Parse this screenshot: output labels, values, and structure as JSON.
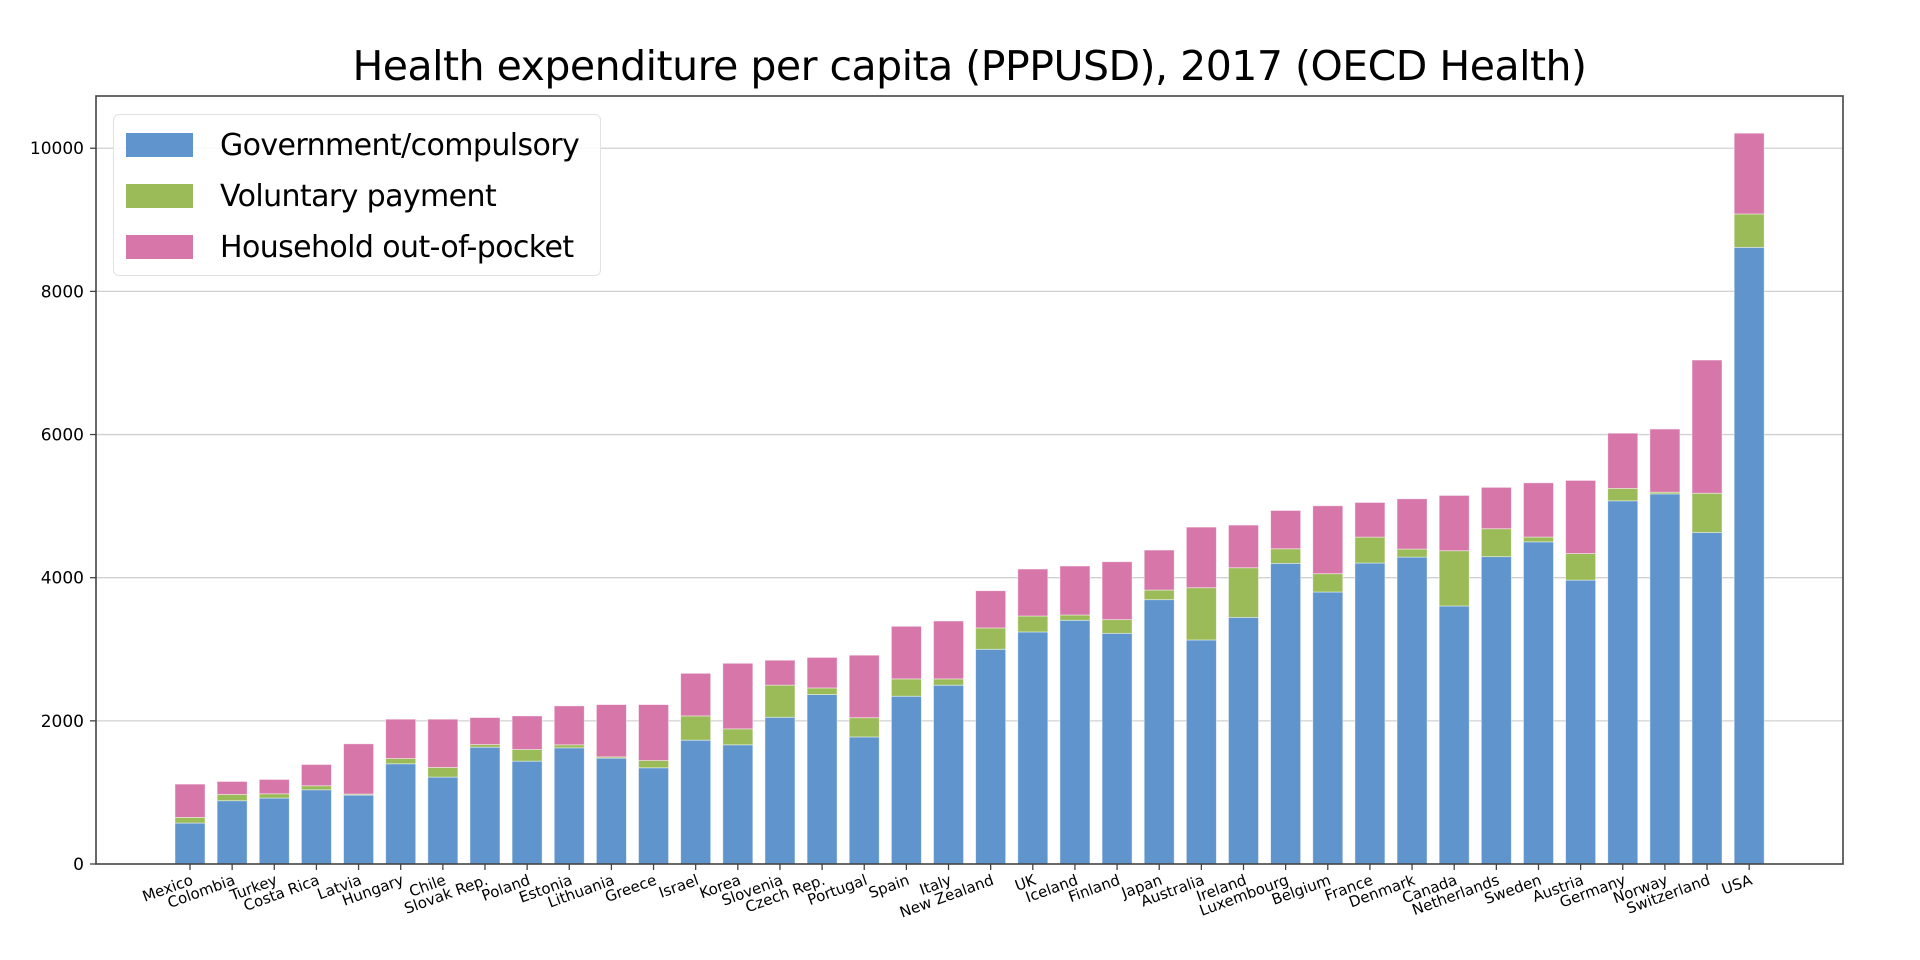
{
  "chart_data": {
    "type": "bar",
    "stacked": true,
    "title": "Health expenditure per capita (PPPUSD), 2017 (OECD Health)",
    "xlabel": "",
    "ylabel": "",
    "ylim": [
      0,
      10730
    ],
    "yticks": [
      0,
      2000,
      4000,
      6000,
      8000,
      10000
    ],
    "grid": "y",
    "legend_position": "top-left",
    "categories": [
      "Mexico",
      "Colombia",
      "Turkey",
      "Costa Rica",
      "Latvia",
      "Hungary",
      "Chile",
      "Slovak Rep.",
      "Poland",
      "Estonia",
      "Lithuania",
      "Greece",
      "Israel",
      "Korea",
      "Slovenia",
      "Czech Rep.",
      "Portugal",
      "Spain",
      "Italy",
      "New Zealand",
      "UK",
      "Iceland",
      "Finland",
      "Japan",
      "Australia",
      "Ireland",
      "Luxembourg",
      "Belgium",
      "France",
      "Denmark",
      "Canada",
      "Netherlands",
      "Sweden",
      "Austria",
      "Germany",
      "Norway",
      "Switzerland",
      "USA"
    ],
    "series": [
      {
        "name": "Government/compulsory",
        "color": "#5f95cc",
        "values": [
          572,
          884,
          921,
          1037,
          963,
          1400,
          1214,
          1632,
          1437,
          1623,
          1479,
          1344,
          1730,
          1665,
          2050,
          2367,
          1775,
          2344,
          2498,
          3000,
          3242,
          3405,
          3223,
          3693,
          3130,
          3446,
          4200,
          3800,
          4205,
          4288,
          3605,
          4294,
          4501,
          3966,
          5074,
          5171,
          4631,
          8615
        ]
      },
      {
        "name": "Voluntary payment",
        "color": "#9bbb59",
        "values": [
          79,
          88,
          60,
          56,
          14,
          74,
          135,
          37,
          163,
          42,
          18,
          102,
          339,
          223,
          449,
          93,
          269,
          242,
          88,
          298,
          223,
          74,
          191,
          135,
          730,
          693,
          204,
          256,
          362,
          112,
          772,
          390,
          67,
          371,
          174,
          24,
          549,
          467
        ]
      },
      {
        "name": "Household out-of-pocket",
        "color": "#d777a9",
        "values": [
          465,
          181,
          200,
          297,
          702,
          549,
          674,
          377,
          469,
          544,
          730,
          781,
          595,
          916,
          348,
          426,
          873,
          735,
          809,
          520,
          656,
          684,
          809,
          558,
          847,
          596,
          535,
          949,
          484,
          702,
          772,
          578,
          757,
          1022,
          771,
          882,
          1861,
          1128
        ]
      }
    ]
  }
}
